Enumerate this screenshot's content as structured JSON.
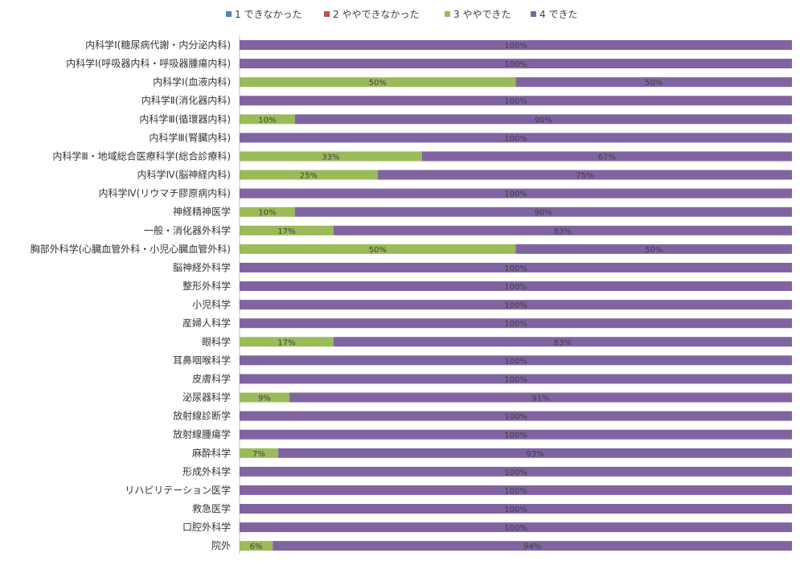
{
  "chart_data": {
    "type": "bar",
    "orientation": "horizontal",
    "stacked": "percent",
    "legend_position": "top",
    "grid": false,
    "xlim": [
      0,
      100
    ],
    "colors": {
      "s1": "#4f81bd",
      "s2": "#c0504d",
      "s3": "#9bbb59",
      "s4": "#8064a2"
    },
    "series": [
      {
        "name": "1 できなかった",
        "color": "#4f81bd"
      },
      {
        "name": "2 ややできなかった",
        "color": "#c0504d"
      },
      {
        "name": "3 ややできた",
        "color": "#9bbb59"
      },
      {
        "name": "4 できた",
        "color": "#8064a2"
      }
    ],
    "categories": [
      "内科学Ⅰ(糖尿病代謝・内分泌内科)",
      "内科学Ⅰ(呼吸器内科・呼吸器腫瘍内科)",
      "内科学Ⅰ(血液内科)",
      "内科学Ⅱ(消化器内科)",
      "内科学Ⅲ(循環器内科)",
      "内科学Ⅲ(腎臓内科)",
      "内科学Ⅲ・地域総合医療科学(総合診療科)",
      "内科学Ⅳ(脳神経内科)",
      "内科学Ⅳ(リウマチ膠原病内科)",
      "神経精神医学",
      "一般・消化器外科学",
      "胸部外科学(心臓血管外科・小児心臓血管外科)",
      "脳神経外科学",
      "整形外科学",
      "小児科学",
      "産婦人科学",
      "眼科学",
      "耳鼻咽喉科学",
      "皮膚科学",
      "泌尿器科学",
      "放射線診断学",
      "放射線腫瘍学",
      "麻酔科学",
      "形成外科学",
      "リハビリテーション医学",
      "救急医学",
      "口腔外科学",
      "院外"
    ],
    "values": [
      [
        0,
        0,
        0,
        100
      ],
      [
        0,
        0,
        0,
        100
      ],
      [
        0,
        0,
        50,
        50
      ],
      [
        0,
        0,
        0,
        100
      ],
      [
        0,
        0,
        10,
        90
      ],
      [
        0,
        0,
        0,
        100
      ],
      [
        0,
        0,
        33,
        67
      ],
      [
        0,
        0,
        25,
        75
      ],
      [
        0,
        0,
        0,
        100
      ],
      [
        0,
        0,
        10,
        90
      ],
      [
        0,
        0,
        17,
        83
      ],
      [
        0,
        0,
        50,
        50
      ],
      [
        0,
        0,
        0,
        100
      ],
      [
        0,
        0,
        0,
        100
      ],
      [
        0,
        0,
        0,
        100
      ],
      [
        0,
        0,
        0,
        100
      ],
      [
        0,
        0,
        17,
        83
      ],
      [
        0,
        0,
        0,
        100
      ],
      [
        0,
        0,
        0,
        100
      ],
      [
        0,
        0,
        9,
        91
      ],
      [
        0,
        0,
        0,
        100
      ],
      [
        0,
        0,
        0,
        100
      ],
      [
        0,
        0,
        7,
        93
      ],
      [
        0,
        0,
        0,
        100
      ],
      [
        0,
        0,
        0,
        100
      ],
      [
        0,
        0,
        0,
        100
      ],
      [
        0,
        0,
        0,
        100
      ],
      [
        0,
        0,
        6,
        94
      ]
    ]
  }
}
